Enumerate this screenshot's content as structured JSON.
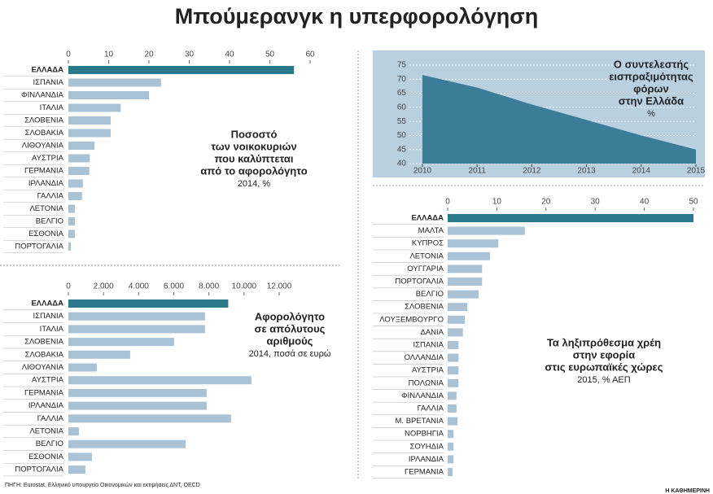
{
  "title": "Μπούμερανγκ η υπερφορολόγηση",
  "source": "ΠΗΓΗ: Eurostat, Ελληνικό υπουργείο Οικονομικών και εκτιμήσεις ΔΝΤ, OECD",
  "publisher": "Η ΚΑΘΗΜΕΡΙΝΗ",
  "chart_data": [
    {
      "type": "hbar",
      "title": [
        "Ποσοστό",
        "των νοικοκυριών",
        "που καλύπτεται",
        "από το αφορολόγητο"
      ],
      "subtitle": "2014, %",
      "categories": [
        "ΕΛΛΑΔΑ",
        "ΙΣΠΑΝΙΑ",
        "ΦΙΝΛΑΝΔΙΑ",
        "ΙΤΑΛΙΑ",
        "ΣΛΟΒΕΝΙΑ",
        "ΣΛΟΒΑΚΙΑ",
        "ΛΙΘΟΥΑΝΙΑ",
        "ΑΥΣΤΡΙΑ",
        "ΓΕΡΜΑΝΙΑ",
        "ΙΡΛΑΝΔΙΑ",
        "ΓΑΛΛΙΑ",
        "ΛΕΤΟΝΙΑ",
        "ΒΕΛΓΙΟ",
        "ΕΣΘΟΝΙΑ",
        "ΠΟΡΤΟΓΑΛΙΑ"
      ],
      "values": [
        56,
        23,
        20,
        13,
        10.5,
        10.5,
        6.5,
        5.3,
        5.2,
        3.6,
        3.4,
        1.6,
        1.6,
        1.6,
        0.6
      ],
      "colors": [
        "#2b7a8c",
        "#a9c2d6",
        "#a9c2d6",
        "#a9c2d6",
        "#a9c2d6",
        "#a9c2d6",
        "#a9c2d6",
        "#a9c2d6",
        "#a9c2d6",
        "#a9c2d6",
        "#a9c2d6",
        "#a9c2d6",
        "#a9c2d6",
        "#a9c2d6",
        "#a9c2d6"
      ],
      "xlim": [
        0,
        60
      ],
      "xticks": [
        0,
        10,
        20,
        30,
        40,
        50,
        60
      ]
    },
    {
      "type": "hbar",
      "title": [
        "Αφορολόγητο",
        "σε απόλυτους",
        "αριθμούς"
      ],
      "subtitle": "2014, ποσά σε ευρώ",
      "categories": [
        "ΕΛΛΑΔΑ",
        "ΙΣΠΑΝΙΑ",
        "ΙΤΑΛΙΑ",
        "ΣΛΟΒΕΝΙΑ",
        "ΣΛΟΒΑΚΙΑ",
        "ΛΙΘΟΥΑΝΙΑ",
        "ΑΥΣΤΡΙΑ",
        "ΓΕΡΜΑΝΙΑ",
        "ΙΡΛΑΝΔΙΑ",
        "ΓΑΛΛΙΑ",
        "ΛΕΤΟΝΙΑ",
        "ΒΕΛΓΙΟ",
        "ΕΣΘΟΝΙΑ",
        "ΠΟΡΤΟΓΑΛΙΑ"
      ],
      "values": [
        9100,
        7780,
        7780,
        6020,
        3520,
        1620,
        10420,
        7870,
        7870,
        9260,
        600,
        6670,
        1340,
        970
      ],
      "colors": [
        "#2b7a8c",
        "#a9c2d6",
        "#a9c2d6",
        "#a9c2d6",
        "#a9c2d6",
        "#a9c2d6",
        "#a9c2d6",
        "#a9c2d6",
        "#a9c2d6",
        "#a9c2d6",
        "#a9c2d6",
        "#a9c2d6",
        "#a9c2d6",
        "#a9c2d6"
      ],
      "xlim": [
        0,
        12000
      ],
      "xticks": [
        0,
        {
          "value": 2000,
          "label": "2.000"
        },
        {
          "value": 4000,
          "label": "4.000"
        },
        {
          "value": 6000,
          "label": "6.000"
        },
        {
          "value": 8000,
          "label": "8.000"
        },
        {
          "value": 10000,
          "label": "10.000"
        },
        {
          "value": 12000,
          "label": "12.000"
        }
      ]
    },
    {
      "type": "area",
      "title": [
        "Ο συντελεστής",
        "εισπραξιμότητας",
        "φόρων",
        "στην Ελλάδα"
      ],
      "subtitle": "%",
      "x": [
        2010,
        2011,
        2012,
        2013,
        2014,
        2015
      ],
      "values": [
        71.5,
        67,
        61,
        55.5,
        50,
        45
      ],
      "color": "#3b7d98",
      "background": "#b9d0e0",
      "xlim": [
        2010,
        2015
      ],
      "xticks": [
        2010,
        2011,
        2012,
        2013,
        2014,
        2015
      ],
      "ylim": [
        40,
        75
      ],
      "yticks": [
        40,
        45,
        50,
        55,
        60,
        65,
        70,
        75
      ]
    },
    {
      "type": "hbar",
      "title": [
        "Τα ληξιπρόθεσμα χρέη",
        "στην εφορία",
        "στις ευρωπαϊκές χώρες"
      ],
      "subtitle": "2015, % ΑΕΠ",
      "categories": [
        "ΕΛΛΑΔΑ",
        "ΜΑΛΤΑ",
        "ΚΥΠΡΟΣ",
        "ΛΕΤΟΝΙΑ",
        "ΟΥΓΓΑΡΙΑ",
        "ΠΟΡΤΟΓΑΛΙΑ",
        "ΒΕΛΓΙΟ",
        "ΣΛΟΒΕΝΙΑ",
        "ΛΟΥΞΕΜΒΟΥΡΓΟ",
        "ΔΑΝΙΑ",
        "ΙΣΠΑΝΙΑ",
        "ΟΛΛΑΝΔΙΑ",
        "ΑΥΣΤΡΙΑ",
        "ΠΟΛΩΝΙΑ",
        "ΦΙΝΛΑΝΔΙΑ",
        "ΓΑΛΛΙΑ",
        "Μ. ΒΡΕΤΑΝΙΑ",
        "ΝΟΡΒΗΓΙΑ",
        "ΣΟΥΗΔΙΑ",
        "ΙΡΛΑΝΔΙΑ",
        "ΓΕΡΜΑΝΙΑ"
      ],
      "values": [
        50,
        15.7,
        10.3,
        8.6,
        7,
        7,
        6.3,
        4,
        3.5,
        3.1,
        2.2,
        2.2,
        2.2,
        2.2,
        1.8,
        1.8,
        2,
        1.2,
        1.2,
        1.2,
        1
      ],
      "colors": [
        "#2b7a8c",
        "#a9c2d6",
        "#a9c2d6",
        "#a9c2d6",
        "#a9c2d6",
        "#a9c2d6",
        "#a9c2d6",
        "#a9c2d6",
        "#a9c2d6",
        "#a9c2d6",
        "#a9c2d6",
        "#a9c2d6",
        "#a9c2d6",
        "#a9c2d6",
        "#a9c2d6",
        "#a9c2d6",
        "#a9c2d6",
        "#a9c2d6",
        "#a9c2d6",
        "#a9c2d6",
        "#a9c2d6"
      ],
      "xlim": [
        0,
        50
      ],
      "xticks": [
        0,
        10,
        20,
        30,
        40,
        50
      ]
    }
  ]
}
